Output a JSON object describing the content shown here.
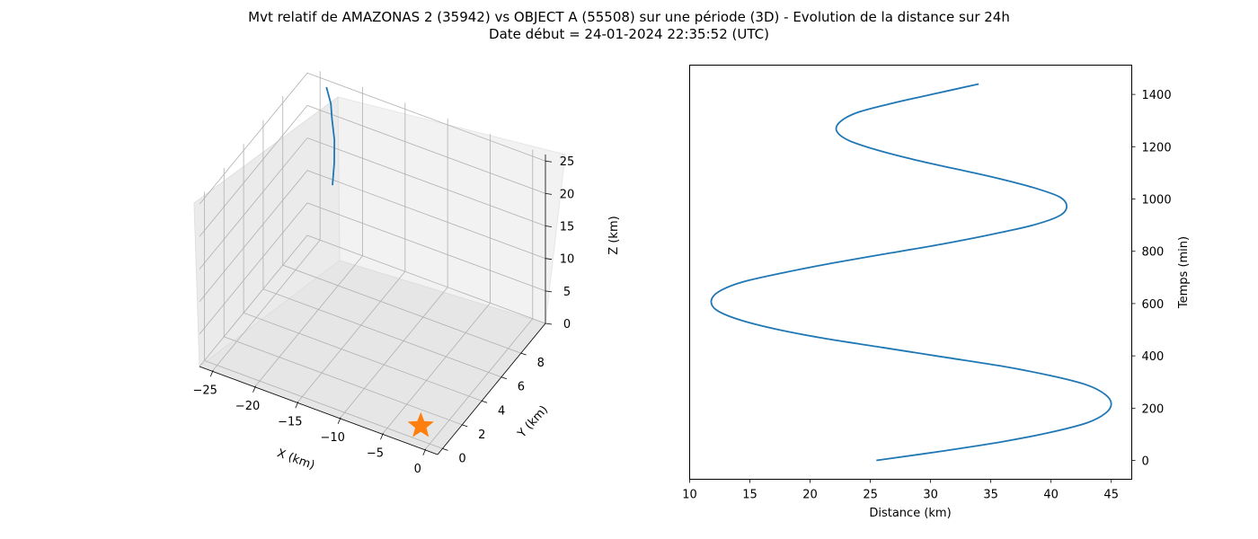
{
  "title_line1": "Mvt relatif de AMAZONAS 2 (35942) vs OBJECT A (55508) sur une période (3D) - Evolution de la distance sur 24h",
  "title_line2": "Date début = 24-01-2024 22:35:52 (UTC)",
  "colors": {
    "series": "#1f77b4",
    "marker": "#ff7f0e",
    "grid": "#b0b0b0",
    "pane": "#f2f2f2"
  },
  "chart_data": [
    {
      "type": "line3d",
      "xlabel": "X (km)",
      "ylabel": "Y (km)",
      "zlabel": "Z (km)",
      "x_ticks": [
        "−25",
        "−20",
        "−15",
        "−10",
        "−5",
        "0"
      ],
      "y_ticks": [
        "0",
        "2",
        "4",
        "6",
        "8"
      ],
      "z_ticks": [
        "0",
        "5",
        "10",
        "15",
        "20",
        "25"
      ],
      "xlim": [
        -26.5,
        1.5
      ],
      "ylim": [
        -0.5,
        10.5
      ],
      "zlim": [
        0,
        26
      ],
      "grid": true,
      "trajectory": {
        "x": [
          -23.1,
          -22.0,
          -21.3,
          -20.2,
          -19.3,
          -18.7
        ],
        "y": [
          9.5,
          9.0,
          8.5,
          7.8,
          7.0,
          6.3
        ],
        "z": [
          26.3,
          25.2,
          24.2,
          22.7,
          21.0,
          19.2
        ]
      },
      "marker": {
        "symbol": "star",
        "x": 0,
        "y": 0,
        "z": 0
      }
    },
    {
      "type": "line",
      "xlabel": "Distance (km)",
      "ylabel": "Temps (min)",
      "x_ticks": [
        "10",
        "15",
        "20",
        "25",
        "30",
        "35",
        "40",
        "45"
      ],
      "y_ticks": [
        "0",
        "200",
        "400",
        "600",
        "800",
        "1000",
        "1200",
        "1400"
      ],
      "xlim": [
        10,
        46.7
      ],
      "ylim": [
        -72,
        1512
      ],
      "y_axis_side": "right",
      "grid": false,
      "series": [
        {
          "distance": [
            25.5,
            31,
            36,
            40,
            43,
            44.5,
            45,
            44.5,
            43,
            40,
            36,
            31,
            26,
            21,
            17,
            14,
            12.2,
            11.8,
            12.5,
            14.5,
            18,
            22,
            26.5,
            31,
            35,
            38.5,
            40.7,
            41.3,
            40.7,
            38.5,
            35.5,
            32,
            28.5,
            25.5,
            23.2,
            22.2,
            22.5,
            24,
            27,
            30.5,
            34
          ],
          "time": [
            0,
            36,
            72,
            108,
            144,
            180,
            216,
            252,
            288,
            324,
            360,
            396,
            432,
            468,
            504,
            540,
            576,
            612,
            648,
            684,
            720,
            756,
            792,
            828,
            864,
            900,
            936,
            972,
            1008,
            1044,
            1080,
            1116,
            1152,
            1188,
            1224,
            1260,
            1296,
            1332,
            1368,
            1404,
            1440
          ]
        }
      ]
    }
  ]
}
